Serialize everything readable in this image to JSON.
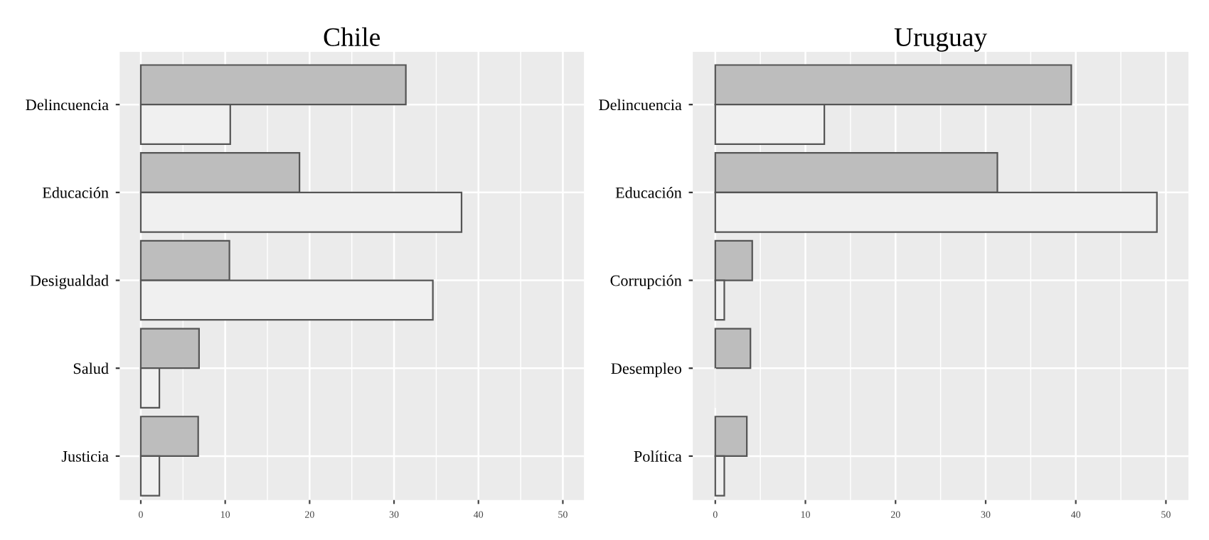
{
  "chart_data": [
    {
      "type": "bar",
      "orientation": "horizontal",
      "title": "Chile",
      "categories": [
        "Delincuencia",
        "Educación",
        "Desigualdad",
        "Salud",
        "Justicia"
      ],
      "series": [
        {
          "color": "#bdbdbd",
          "values": [
            31.4,
            18.8,
            10.5,
            6.9,
            6.8
          ]
        },
        {
          "color": "#f0f0f0",
          "values": [
            10.6,
            38,
            34.6,
            2.2,
            2.2
          ]
        }
      ],
      "xlim": [
        -2.5,
        52.5
      ],
      "xticks": [
        0,
        10,
        20,
        30,
        40,
        50
      ],
      "grid": true,
      "legend": false
    },
    {
      "type": "bar",
      "orientation": "horizontal",
      "title": "Uruguay",
      "categories": [
        "Delincuencia",
        "Educación",
        "Corrupción",
        "Desempleo",
        "Política"
      ],
      "series": [
        {
          "color": "#bdbdbd",
          "values": [
            39.5,
            31.3,
            4.1,
            3.9,
            3.5
          ]
        },
        {
          "color": "#f0f0f0",
          "values": [
            12.1,
            49,
            1,
            0,
            1
          ]
        }
      ],
      "xlim": [
        -2.5,
        52.5
      ],
      "xticks": [
        0,
        10,
        20,
        30,
        40,
        50
      ],
      "grid": true,
      "legend": false
    }
  ]
}
